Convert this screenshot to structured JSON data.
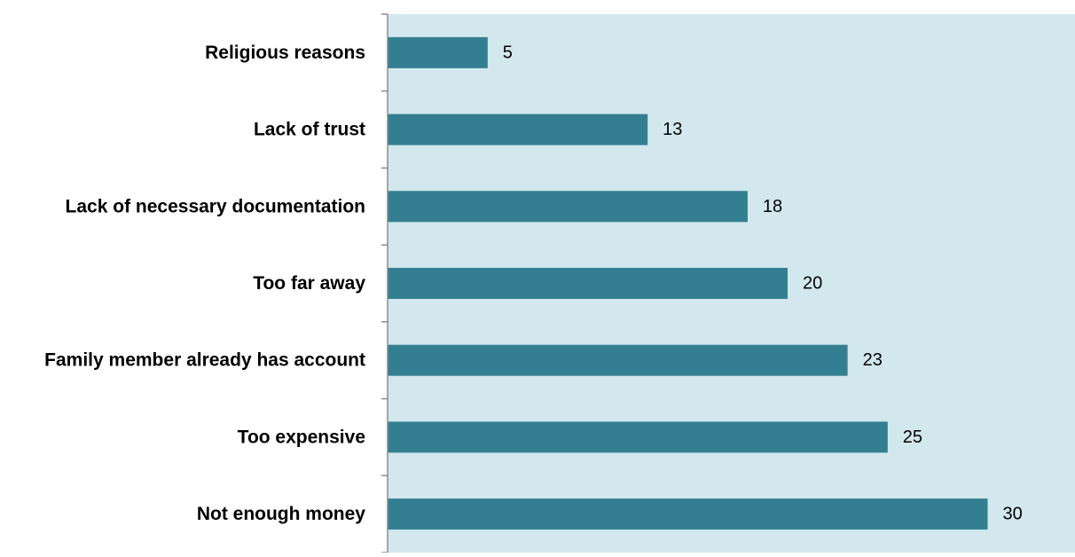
{
  "chart_data": {
    "type": "bar",
    "orientation": "horizontal",
    "title": "",
    "xlabel": "",
    "ylabel": "",
    "categories": [
      "Religious reasons",
      "Lack of trust",
      "Lack of necessary documentation",
      "Too far away",
      "Family member already has account",
      "Too expensive",
      "Not enough money"
    ],
    "values": [
      5,
      13,
      18,
      20,
      23,
      25,
      30
    ],
    "value_labels": [
      "5",
      "13",
      "18",
      "20",
      "23",
      "25",
      "30"
    ],
    "xlim": [
      0,
      34.5
    ],
    "grid": false,
    "legend": "none",
    "colors": {
      "bar": "#337f91",
      "plot_background": "#d2e8ee",
      "axis": "#8c8c8c",
      "page_background": "#ffffff"
    }
  }
}
